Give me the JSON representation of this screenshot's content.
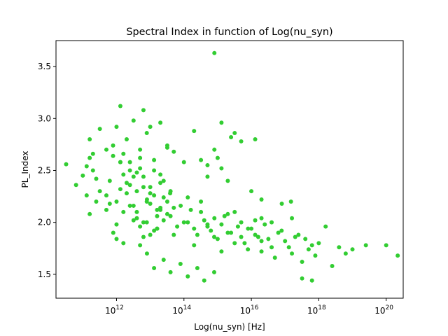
{
  "chart_data": {
    "type": "scatter",
    "title": "Spectral Index in function of Log(nu_syn)",
    "xlabel": "Log(nu_syn) [Hz]",
    "ylabel": "PL_Index",
    "x_scale": "log",
    "xlim": [
      16000000000.0,
      3.2e+20
    ],
    "ylim": [
      1.27,
      3.75
    ],
    "x_ticks": [
      {
        "value": 1000000000000.0,
        "label": "10",
        "exp": "12"
      },
      {
        "value": 100000000000000.0,
        "label": "10",
        "exp": "14"
      },
      {
        "value": 1e+16,
        "label": "10",
        "exp": "16"
      },
      {
        "value": 1e+18,
        "label": "10",
        "exp": "18"
      },
      {
        "value": 1e+20,
        "label": "10",
        "exp": "20"
      }
    ],
    "y_ticks": [
      {
        "value": 1.5,
        "label": "1.5"
      },
      {
        "value": 2.0,
        "label": "2.0"
      },
      {
        "value": 2.5,
        "label": "2.5"
      },
      {
        "value": 3.0,
        "label": "3.0"
      },
      {
        "value": 3.5,
        "label": "3.5"
      }
    ],
    "grid": false,
    "marker_color": "#32cd32",
    "series": [
      {
        "x": [
          32000000000.0,
          63000000000.0,
          100000000000.0,
          130000000000.0,
          160000000000.0,
          160000000000.0,
          200000000000.0,
          250000000000.0,
          320000000000.0,
          160000000000.0,
          130000000000.0,
          200000000000.0,
          250000000000.0,
          320000000000.0,
          1300000000000.0,
          500000000000.0,
          1000000000000.0,
          1600000000000.0,
          2000000000000.0,
          2500000000000.0,
          3200000000000.0,
          4000000000000.0,
          5000000000000.0,
          6300000000000.0,
          7900000000000.0,
          10000000000000.0,
          13000000000000.0,
          16000000000000.0,
          20000000000000.0,
          25000000000000.0,
          500000000000.0,
          790000000000.0,
          1300000000000.0,
          2000000000000.0,
          3200000000000.0,
          5000000000000.0,
          7900000000000.0,
          13000000000000.0,
          20000000000000.0,
          32000000000000.0,
          630000000000.0,
          1000000000000.0,
          1600000000000.0,
          2500000000000.0,
          4000000000000.0,
          6300000000000.0,
          10000000000000.0,
          16000000000000.0,
          25000000000000.0,
          40000000000000.0,
          790000000000.0,
          1300000000000.0,
          2000000000000.0,
          3200000000000.0,
          5000000000000.0,
          7900000000000.0,
          13000000000000.0,
          20000000000000.0,
          32000000000000.0,
          50000000000000.0,
          1000000000000.0,
          1600000000000.0,
          2500000000000.0,
          4000000000000.0,
          6300000000000.0,
          10000000000000.0,
          16000000000000.0,
          25000000000000.0,
          40000000000000.0,
          63000000000000.0,
          100000000000000.0,
          160000000000000.0,
          250000000000000.0,
          400000000000000.0,
          630000000000000.0,
          1000000000000000.0,
          1600000000000000.0,
          2500000000000000.0,
          4000000000000000.0,
          6300000000000000.0,
          130000000000000.0,
          200000000000000.0,
          320000000000000.0,
          500000000000000.0,
          790000000000000.0,
          1300000000000000.0,
          2000000000000000.0,
          3200000000000000.0,
          5000000000000000.0,
          7900000000000000.0,
          1e+16,
          1.6e+16,
          2.5e+16,
          4e+16,
          6.3e+16,
          1e+17,
          1.6e+17,
          2.5e+17,
          4e+17,
          6.3e+17,
          1.3e+16,
          2e+16,
          3.2e+16,
          5e+16,
          7.9e+16,
          1.3e+17,
          2e+17,
          3.2e+17,
          5e+17,
          7.9e+17,
          1e+18,
          1.6e+18,
          2.5e+18,
          4e+18,
          6.3e+18,
          1e+19,
          2.5e+19,
          1e+20,
          2.2e+20,
          1300000000000.0,
          39000000000000.0,
          800000000000000.0,
          500000000000000.0,
          1000000000000000.0,
          1300000000000000.0,
          2000000000000000.0,
          1.3e+16,
          2e+16,
          1.5e+17,
          3200000000000000.0,
          6300000000000.0,
          10000000000000.0,
          20000000000000.0,
          32000000000000.0,
          50000000000000.0,
          100000000000000.0,
          200000000000000.0,
          320000000000000.0,
          500000000000000.0,
          800000000000000.0,
          1300000000000000.0,
          2500000000000000.0,
          5000000000000000.0,
          1e+16,
          2e+16,
          4e+16,
          8e+16,
          1.6e+17,
          3.2e+17,
          6.3e+17,
          5000000000000.0,
          8000000000000.0,
          13000000000000.0,
          25000000000000.0,
          40000000000000.0,
          79000000000000.0,
          130000000000000.0,
          250000000000000.0,
          400000000000000.0,
          790000000000000.0,
          500000000000.0,
          630000000000.0,
          800000000000.0,
          1000000000000.0,
          1600000000000.0,
          2500000000000.0,
          4000000000000.0,
          6300000000000.0,
          10000000000000.0,
          16000000000000.0,
          3200000000000.0,
          5000000000000.0,
          8000000000000.0,
          13000000000000.0,
          20000000000000.0,
          32000000000000.0,
          50000000000000.0,
          80000000000000.0,
          130000000000000.0,
          200000000000000.0,
          320000000000000.0,
          500000000000000.0,
          800000000000000.0,
          1300000000000000.0,
          2000000000000000.0,
          3200000000000000.0,
          5000000000000000.0,
          8000000000000000.0,
          1.3e+16,
          2e+16
        ],
        "y": [
          2.56,
          2.36,
          2.45,
          2.26,
          2.62,
          2.8,
          2.5,
          2.42,
          2.3,
          2.08,
          2.54,
          2.66,
          2.2,
          2.9,
          3.12,
          2.7,
          2.92,
          2.46,
          2.38,
          2.58,
          2.44,
          2.3,
          2.52,
          2.34,
          2.2,
          2.18,
          2.26,
          2.06,
          2.12,
          2.24,
          2.12,
          2.64,
          2.32,
          2.8,
          2.98,
          2.7,
          2.86,
          2.6,
          2.46,
          2.72,
          2.4,
          2.2,
          2.66,
          2.5,
          2.1,
          2.44,
          2.34,
          2.12,
          2.02,
          2.3,
          2.74,
          2.58,
          2.28,
          2.16,
          2.62,
          2.0,
          2.5,
          2.38,
          2.2,
          2.14,
          1.98,
          2.1,
          2.36,
          2.48,
          1.86,
          2.28,
          1.94,
          2.4,
          2.06,
          1.96,
          2.0,
          2.12,
          1.88,
          2.02,
          1.92,
          1.84,
          2.06,
          1.9,
          1.96,
          1.8,
          2.24,
          1.78,
          2.2,
          1.98,
          1.86,
          1.72,
          2.08,
          1.8,
          2.0,
          1.74,
          1.94,
          1.86,
          1.98,
          1.76,
          1.9,
          1.82,
          1.7,
          1.88,
          1.84,
          1.78,
          2.02,
          1.72,
          1.84,
          1.66,
          1.92,
          1.76,
          1.86,
          1.62,
          1.74,
          1.68,
          1.8,
          1.96,
          1.58,
          1.76,
          1.7,
          1.74,
          1.78,
          1.78,
          1.68,
          2.58,
          2.28,
          3.63,
          2.55,
          2.62,
          2.96,
          2.4,
          2.8,
          2.04,
          2.2,
          2.86,
          3.08,
          2.92,
          2.96,
          2.74,
          2.68,
          2.58,
          2.88,
          2.6,
          2.44,
          2.7,
          2.52,
          2.82,
          2.78,
          2.3,
          2.22,
          2.0,
          2.18,
          2.04,
          1.46,
          1.44,
          1.78,
          1.7,
          1.56,
          1.64,
          1.52,
          1.6,
          1.48,
          1.56,
          1.44,
          1.52,
          2.26,
          2.18,
          1.9,
          1.84,
          1.8,
          2.16,
          2.04,
          2.0,
          1.88,
          1.94,
          2.02,
          1.96,
          2.22,
          1.92,
          2.14,
          2.08,
          1.88,
          2.16,
          2.0,
          1.94,
          2.1,
          1.96,
          2.04,
          1.98,
          1.9,
          2.1,
          1.86,
          1.94,
          1.88,
          1.82
        ]
      }
    ]
  }
}
